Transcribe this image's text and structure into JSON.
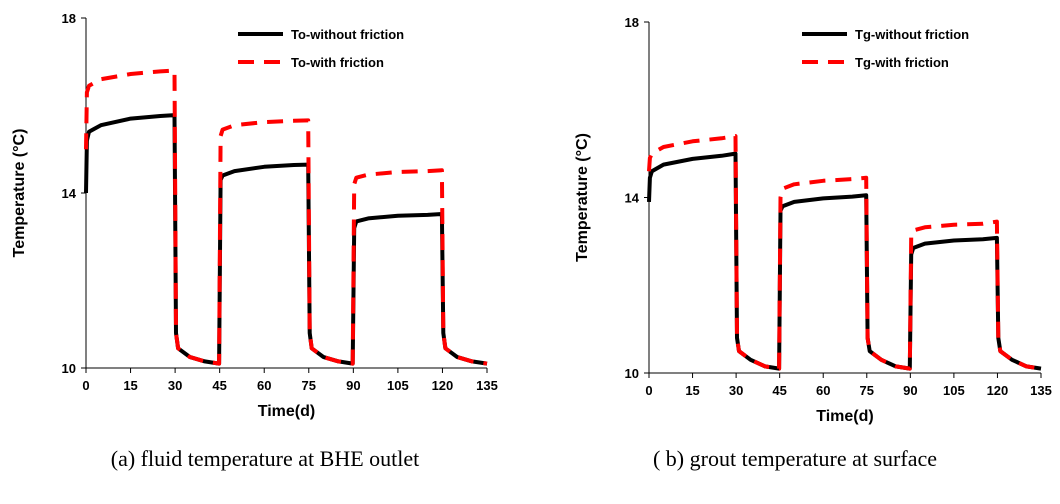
{
  "chart_data": [
    {
      "type": "line",
      "caption": "(a) fluid temperature at BHE outlet",
      "xlabel": "Time(d)",
      "ylabel": "Temperature (°C)",
      "xlim": [
        0,
        135
      ],
      "ylim": [
        10,
        18
      ],
      "xticks": [
        0,
        15,
        30,
        45,
        60,
        75,
        90,
        105,
        120,
        135
      ],
      "yticks": [
        10,
        14,
        18
      ],
      "grid": false,
      "legend_position": "top-right",
      "series": [
        {
          "name": "To-without friction",
          "color": "#000000",
          "style": "solid",
          "points": [
            [
              0,
              14.0
            ],
            [
              0.3,
              15.2
            ],
            [
              1,
              15.4
            ],
            [
              5,
              15.55
            ],
            [
              15,
              15.7
            ],
            [
              25,
              15.76
            ],
            [
              29.8,
              15.78
            ],
            [
              30.3,
              10.8
            ],
            [
              31,
              10.45
            ],
            [
              35,
              10.25
            ],
            [
              40,
              10.15
            ],
            [
              44.8,
              10.1
            ],
            [
              45.3,
              14.3
            ],
            [
              46,
              14.4
            ],
            [
              50,
              14.5
            ],
            [
              60,
              14.6
            ],
            [
              70,
              14.64
            ],
            [
              74.8,
              14.65
            ],
            [
              75.3,
              10.8
            ],
            [
              76,
              10.45
            ],
            [
              80,
              10.25
            ],
            [
              85,
              10.15
            ],
            [
              89.8,
              10.1
            ],
            [
              90.3,
              13.2
            ],
            [
              91,
              13.35
            ],
            [
              95,
              13.42
            ],
            [
              105,
              13.48
            ],
            [
              115,
              13.5
            ],
            [
              119.8,
              13.52
            ],
            [
              120.3,
              10.8
            ],
            [
              121,
              10.45
            ],
            [
              125,
              10.25
            ],
            [
              130,
              10.15
            ],
            [
              135,
              10.1
            ]
          ]
        },
        {
          "name": "To-with friction",
          "color": "#ff0000",
          "style": "dashed",
          "points": [
            [
              0,
              15.0
            ],
            [
              0.3,
              16.3
            ],
            [
              1,
              16.45
            ],
            [
              5,
              16.6
            ],
            [
              15,
              16.72
            ],
            [
              25,
              16.78
            ],
            [
              29.8,
              16.8
            ],
            [
              30.3,
              10.8
            ],
            [
              31,
              10.45
            ],
            [
              35,
              10.25
            ],
            [
              40,
              10.15
            ],
            [
              44.8,
              10.1
            ],
            [
              45.3,
              15.3
            ],
            [
              46,
              15.45
            ],
            [
              50,
              15.55
            ],
            [
              60,
              15.62
            ],
            [
              70,
              15.65
            ],
            [
              74.8,
              15.66
            ],
            [
              75.3,
              10.8
            ],
            [
              76,
              10.45
            ],
            [
              80,
              10.25
            ],
            [
              85,
              10.15
            ],
            [
              89.8,
              10.1
            ],
            [
              90.3,
              14.2
            ],
            [
              91,
              14.35
            ],
            [
              95,
              14.42
            ],
            [
              105,
              14.48
            ],
            [
              115,
              14.5
            ],
            [
              119.8,
              14.52
            ],
            [
              120.3,
              10.8
            ],
            [
              121,
              10.45
            ],
            [
              125,
              10.25
            ],
            [
              130,
              10.15
            ],
            [
              135,
              10.1
            ]
          ]
        }
      ]
    },
    {
      "type": "line",
      "caption": "( b) grout temperature at surface",
      "xlabel": "Time(d)",
      "ylabel": "Temperature (°C)",
      "xlim": [
        0,
        135
      ],
      "ylim": [
        10,
        18
      ],
      "xticks": [
        0,
        15,
        30,
        45,
        60,
        75,
        90,
        105,
        120,
        135
      ],
      "yticks": [
        10,
        14,
        18
      ],
      "grid": false,
      "legend_position": "top-right",
      "series": [
        {
          "name": "Tg-without friction",
          "color": "#000000",
          "style": "solid",
          "points": [
            [
              0,
              13.9
            ],
            [
              0.3,
              14.45
            ],
            [
              1,
              14.6
            ],
            [
              5,
              14.75
            ],
            [
              15,
              14.88
            ],
            [
              25,
              14.95
            ],
            [
              29.8,
              15.0
            ],
            [
              30.3,
              10.8
            ],
            [
              31,
              10.5
            ],
            [
              35,
              10.3
            ],
            [
              40,
              10.15
            ],
            [
              44.8,
              10.1
            ],
            [
              45.3,
              13.7
            ],
            [
              46,
              13.8
            ],
            [
              50,
              13.9
            ],
            [
              60,
              13.98
            ],
            [
              70,
              14.02
            ],
            [
              74.8,
              14.05
            ],
            [
              75.3,
              10.8
            ],
            [
              76,
              10.5
            ],
            [
              80,
              10.3
            ],
            [
              85,
              10.15
            ],
            [
              89.8,
              10.1
            ],
            [
              90.3,
              12.7
            ],
            [
              91,
              12.85
            ],
            [
              95,
              12.95
            ],
            [
              105,
              13.02
            ],
            [
              115,
              13.05
            ],
            [
              119.8,
              13.08
            ],
            [
              120.3,
              10.8
            ],
            [
              121,
              10.5
            ],
            [
              125,
              10.3
            ],
            [
              130,
              10.15
            ],
            [
              135,
              10.1
            ]
          ]
        },
        {
          "name": "Tg-with friction",
          "color": "#ff0000",
          "style": "dashed",
          "points": [
            [
              0,
              14.6
            ],
            [
              0.3,
              14.9
            ],
            [
              1,
              15.0
            ],
            [
              5,
              15.15
            ],
            [
              15,
              15.28
            ],
            [
              25,
              15.35
            ],
            [
              29.8,
              15.4
            ],
            [
              30.3,
              10.8
            ],
            [
              31,
              10.5
            ],
            [
              35,
              10.3
            ],
            [
              40,
              10.15
            ],
            [
              44.8,
              10.1
            ],
            [
              45.3,
              14.0
            ],
            [
              46,
              14.2
            ],
            [
              50,
              14.3
            ],
            [
              60,
              14.38
            ],
            [
              70,
              14.42
            ],
            [
              74.8,
              14.45
            ],
            [
              75.3,
              10.8
            ],
            [
              76,
              10.5
            ],
            [
              80,
              10.3
            ],
            [
              85,
              10.15
            ],
            [
              89.8,
              10.1
            ],
            [
              90.3,
              13.1
            ],
            [
              91,
              13.25
            ],
            [
              95,
              13.32
            ],
            [
              105,
              13.38
            ],
            [
              115,
              13.4
            ],
            [
              119.8,
              13.45
            ],
            [
              120.3,
              10.8
            ],
            [
              121,
              10.5
            ],
            [
              125,
              10.3
            ],
            [
              130,
              10.15
            ],
            [
              135,
              10.1
            ]
          ]
        }
      ]
    }
  ]
}
